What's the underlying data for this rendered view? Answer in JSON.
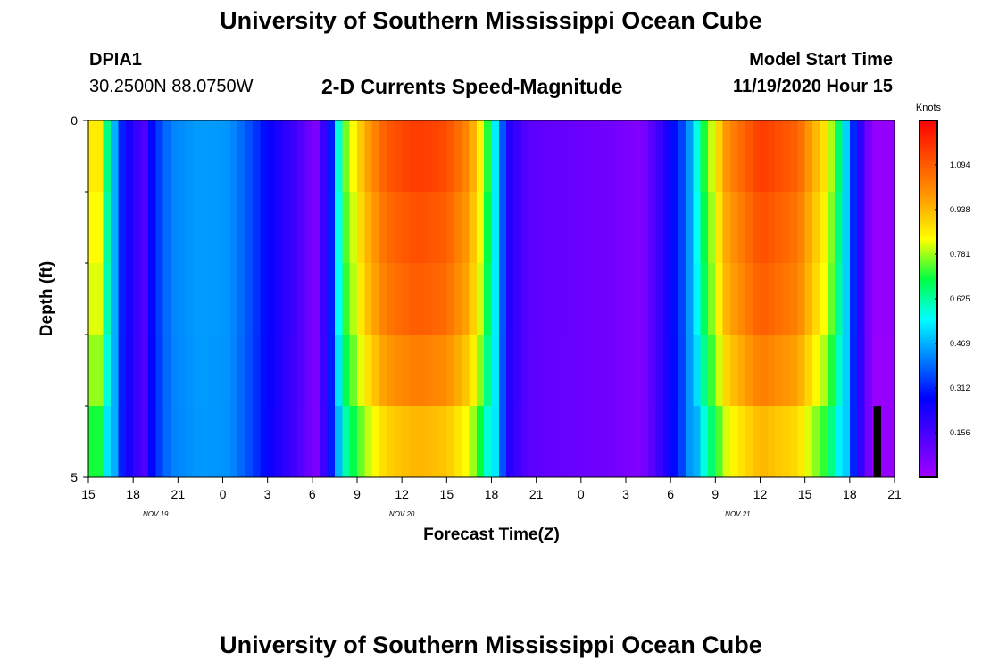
{
  "header": {
    "title": "University of Southern Mississippi Ocean Cube",
    "footer_title": "University of Southern Mississippi Ocean Cube",
    "station_id": "DPIA1",
    "station_coords": "30.2500N 88.0750W",
    "plot_title": "2-D Currents Speed-Magnitude",
    "model_start_label": "Model Start Time",
    "model_start_value": "11/19/2020 Hour 15"
  },
  "chart_data": {
    "type": "heatmap",
    "title": "2-D Currents Speed-Magnitude",
    "xlabel": "Forecast Time(Z)",
    "ylabel": "Depth (ft)",
    "x_range": [
      0,
      54
    ],
    "x_unit": "hours since 11/19/2020 15Z",
    "y_range": [
      0,
      5
    ],
    "x_ticks": [
      {
        "h": 0,
        "label": "15"
      },
      {
        "h": 3,
        "label": "18"
      },
      {
        "h": 6,
        "label": "21"
      },
      {
        "h": 9,
        "label": "0"
      },
      {
        "h": 12,
        "label": "3"
      },
      {
        "h": 15,
        "label": "6"
      },
      {
        "h": 18,
        "label": "9"
      },
      {
        "h": 21,
        "label": "12"
      },
      {
        "h": 24,
        "label": "15"
      },
      {
        "h": 27,
        "label": "18"
      },
      {
        "h": 30,
        "label": "21"
      },
      {
        "h": 33,
        "label": "0"
      },
      {
        "h": 36,
        "label": "3"
      },
      {
        "h": 39,
        "label": "6"
      },
      {
        "h": 42,
        "label": "9"
      },
      {
        "h": 45,
        "label": "12"
      },
      {
        "h": 48,
        "label": "15"
      },
      {
        "h": 51,
        "label": "18"
      },
      {
        "h": 54,
        "label": "21"
      }
    ],
    "date_labels": [
      {
        "h": 4.5,
        "label": "NOV 19"
      },
      {
        "h": 21,
        "label": "NOV 20"
      },
      {
        "h": 43.5,
        "label": "NOV 21"
      }
    ],
    "y_ticks": [
      {
        "v": 0,
        "label": "0"
      },
      {
        "v": 5,
        "label": "5"
      }
    ],
    "y_minor_ticks": [
      1,
      2,
      3,
      4
    ],
    "depth_layers": 5,
    "layer_factors": [
      1.0,
      0.97,
      0.95,
      0.9,
      0.82
    ],
    "bottom_factor_scope": "active",
    "surface_speed_profile": [
      {
        "h": 0,
        "v": 0.86
      },
      {
        "h": 0.8,
        "v": 0.86
      },
      {
        "h": 1.3,
        "v": 0.62
      },
      {
        "h": 2.2,
        "v": 0.32
      },
      {
        "h": 3.0,
        "v": 0.2
      },
      {
        "h": 3.8,
        "v": 0.14
      },
      {
        "h": 4.3,
        "v": 0.3
      },
      {
        "h": 5.5,
        "v": 0.42
      },
      {
        "h": 7.5,
        "v": 0.45
      },
      {
        "h": 9.5,
        "v": 0.44
      },
      {
        "h": 10.8,
        "v": 0.36
      },
      {
        "h": 12.5,
        "v": 0.24
      },
      {
        "h": 14.0,
        "v": 0.16
      },
      {
        "h": 15.2,
        "v": 0.05
      },
      {
        "h": 16.2,
        "v": 0.28
      },
      {
        "h": 17.0,
        "v": 0.72
      },
      {
        "h": 18.5,
        "v": 0.95
      },
      {
        "h": 20.0,
        "v": 1.1
      },
      {
        "h": 22.0,
        "v": 1.15
      },
      {
        "h": 24.0,
        "v": 1.12
      },
      {
        "h": 25.5,
        "v": 1.0
      },
      {
        "h": 26.5,
        "v": 0.8
      },
      {
        "h": 27.3,
        "v": 0.52
      },
      {
        "h": 28.2,
        "v": 0.22
      },
      {
        "h": 29.5,
        "v": 0.12
      },
      {
        "h": 32.0,
        "v": 0.1
      },
      {
        "h": 35.0,
        "v": 0.08
      },
      {
        "h": 37.0,
        "v": 0.05
      },
      {
        "h": 38.5,
        "v": 0.2
      },
      {
        "h": 40.0,
        "v": 0.38
      },
      {
        "h": 41.3,
        "v": 0.72
      },
      {
        "h": 42.8,
        "v": 1.0
      },
      {
        "h": 45.0,
        "v": 1.15
      },
      {
        "h": 47.5,
        "v": 1.08
      },
      {
        "h": 49.5,
        "v": 0.85
      },
      {
        "h": 50.5,
        "v": 0.6
      },
      {
        "h": 51.3,
        "v": 0.3
      },
      {
        "h": 52.5,
        "v": 0.02
      },
      {
        "h": 54.0,
        "v": 0.02
      }
    ],
    "bottom_layer_no_data": [
      {
        "from_h": 52.6,
        "to_h": 53.1
      }
    ],
    "colorbar": {
      "unit": "Knots",
      "min": 0.0,
      "max": 1.25,
      "ticks": [
        0.156,
        0.312,
        0.469,
        0.625,
        0.781,
        0.938,
        1.094
      ],
      "tick_labels": [
        "0.156",
        "0.312",
        "0.469",
        "0.625",
        "0.781",
        "0.938",
        "1.094"
      ]
    },
    "colors": {
      "scale": [
        "#a000ff",
        "#5000ff",
        "#0000ff",
        "#0080ff",
        "#00ffff",
        "#00ff40",
        "#ffff00",
        "#ffa000",
        "#ff5000",
        "#ff0000"
      ],
      "no_data": "#000000",
      "axis": "#000000"
    }
  }
}
